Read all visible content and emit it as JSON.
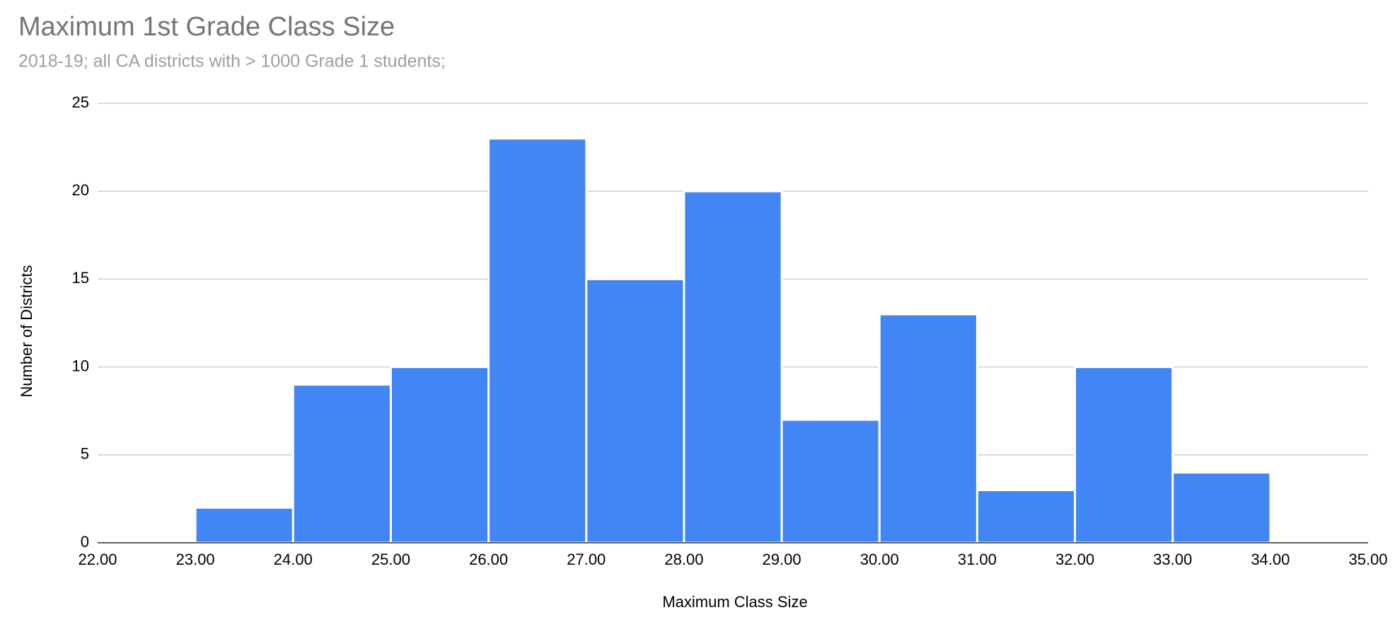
{
  "chart_data": {
    "type": "histogram",
    "title": "Maximum 1st Grade Class Size",
    "subtitle": "2018-19; all CA districts with > 1000 Grade 1 students;",
    "x_label": "Maximum Class Size",
    "y_label": "Number of Districts",
    "bins": [
      23,
      24,
      25,
      26,
      27,
      28,
      29,
      30,
      31,
      32,
      33,
      34
    ],
    "values": [
      2,
      9,
      10,
      23,
      15,
      20,
      7,
      13,
      3,
      10,
      4
    ],
    "color": "#4285f4",
    "xlim": [
      22,
      35
    ],
    "xticks": [
      {
        "value": 22,
        "label": "22.00"
      },
      {
        "value": 23,
        "label": "23.00"
      },
      {
        "value": 24,
        "label": "24.00"
      },
      {
        "value": 25,
        "label": "25.00"
      },
      {
        "value": 26,
        "label": "26.00"
      },
      {
        "value": 27,
        "label": "27.00"
      },
      {
        "value": 28,
        "label": "28.00"
      },
      {
        "value": 29,
        "label": "29.00"
      },
      {
        "value": 30,
        "label": "30.00"
      },
      {
        "value": 31,
        "label": "31.00"
      },
      {
        "value": 32,
        "label": "32.00"
      },
      {
        "value": 33,
        "label": "33.00"
      },
      {
        "value": 34,
        "label": "34.00"
      },
      {
        "value": 35,
        "label": "35.00"
      }
    ],
    "ylim": [
      0,
      25
    ],
    "yticks": [
      0,
      5,
      10,
      15,
      20,
      25
    ],
    "grid": true
  }
}
